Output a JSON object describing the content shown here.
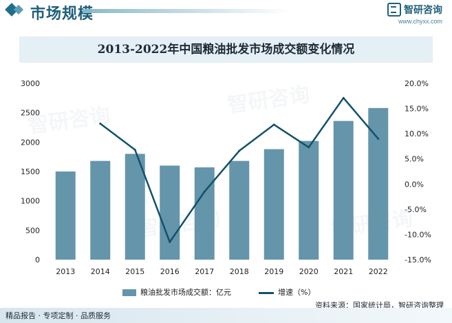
{
  "header": {
    "title": "市场规模",
    "brand_name": "智研咨询",
    "brand_url": "www.chyxx.com"
  },
  "watermark": "智研咨询",
  "source": "资料来源：国家统计局，智研咨询整理",
  "footer": "精品报告 · 专项定制 · 品质服务",
  "colors": {
    "bar": "#6595ab",
    "line": "#12516b",
    "accent": "#1f5f7a"
  },
  "chart_data": {
    "type": "bar",
    "title": "2013-2022年中国粮油批发市场成交额变化情况",
    "categories": [
      "2013",
      "2014",
      "2015",
      "2016",
      "2017",
      "2018",
      "2019",
      "2020",
      "2021",
      "2022"
    ],
    "series": [
      {
        "name": "粮油批发市场成交额：亿元",
        "type": "bar",
        "axis": "left",
        "values": [
          1500,
          1680,
          1800,
          1600,
          1570,
          1680,
          1880,
          2020,
          2360,
          2580
        ]
      },
      {
        "name": "增速（%）",
        "type": "line",
        "axis": "right",
        "values": [
          null,
          12.0,
          6.8,
          -11.5,
          -1.5,
          6.6,
          11.8,
          7.3,
          17.1,
          9.0
        ]
      }
    ],
    "y_left": {
      "min": 0,
      "max": 3000,
      "ticks": [
        0,
        500,
        1000,
        1500,
        2000,
        2500,
        3000
      ]
    },
    "y_right": {
      "min": -15,
      "max": 20,
      "ticks": [
        -15,
        -10,
        -5,
        0,
        5,
        10,
        15,
        20
      ],
      "tick_labels": [
        "-15.0%",
        "-10.0%",
        "-5.0%",
        "0.0%",
        "5.0%",
        "10.0%",
        "15.0%",
        "20.0%"
      ]
    },
    "grid": false,
    "legend": "bottom"
  }
}
